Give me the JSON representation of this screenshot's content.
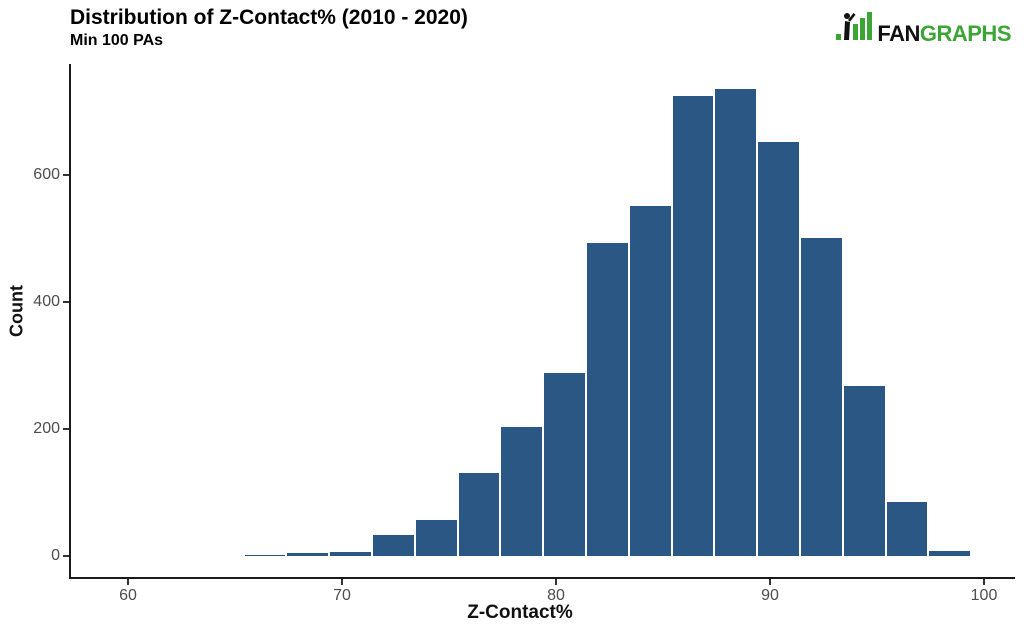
{
  "logo": {
    "text_black": "FAN",
    "text_green": "GRAPHS",
    "green": "#3da535",
    "black": "#111111",
    "icon": "fangraphs-batter-barchart-icon"
  },
  "chart_data": {
    "type": "bar",
    "subtype": "histogram",
    "title": "Distribution of Z-Contact% (2010 - 2020)",
    "subtitle": "Min 100 PAs",
    "xlabel": "Z-Contact%",
    "ylabel": "Count",
    "x_ticks": [
      60,
      70,
      80,
      90,
      100
    ],
    "y_ticks": [
      0,
      200,
      400,
      600
    ],
    "xlim": [
      57.3,
      101.5
    ],
    "ylim": [
      0,
      775
    ],
    "grid": false,
    "legend": false,
    "bin_width": 2,
    "bins": [
      {
        "x_start": 65.4,
        "x_end": 67.4,
        "count": 3
      },
      {
        "x_start": 67.4,
        "x_end": 69.4,
        "count": 6
      },
      {
        "x_start": 69.4,
        "x_end": 71.4,
        "count": 8
      },
      {
        "x_start": 71.4,
        "x_end": 73.4,
        "count": 35
      },
      {
        "x_start": 73.4,
        "x_end": 75.4,
        "count": 58
      },
      {
        "x_start": 75.4,
        "x_end": 77.4,
        "count": 132
      },
      {
        "x_start": 77.4,
        "x_end": 79.4,
        "count": 205
      },
      {
        "x_start": 79.4,
        "x_end": 81.4,
        "count": 290
      },
      {
        "x_start": 81.4,
        "x_end": 83.4,
        "count": 494
      },
      {
        "x_start": 83.4,
        "x_end": 85.4,
        "count": 553
      },
      {
        "x_start": 85.4,
        "x_end": 87.4,
        "count": 726
      },
      {
        "x_start": 87.4,
        "x_end": 89.4,
        "count": 737
      },
      {
        "x_start": 89.4,
        "x_end": 91.4,
        "count": 654
      },
      {
        "x_start": 91.4,
        "x_end": 93.4,
        "count": 502
      },
      {
        "x_start": 93.4,
        "x_end": 95.4,
        "count": 269
      },
      {
        "x_start": 95.4,
        "x_end": 97.4,
        "count": 87
      },
      {
        "x_start": 97.4,
        "x_end": 99.4,
        "count": 9
      }
    ],
    "bar_color": "#2a5784",
    "bar_border_color": "#ffffff",
    "axis_color": "#1a1a1a",
    "tick_label_color": "#4d4d4d"
  }
}
